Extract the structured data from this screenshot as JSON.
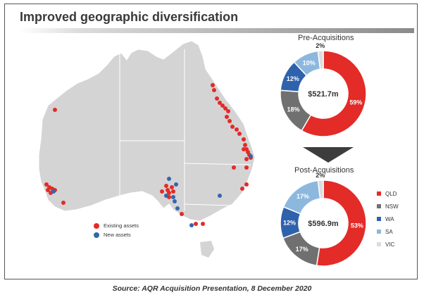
{
  "title": "Improved geographic diversification",
  "caption": "Source: AQR Acquisition Presentation, 8 December 2020",
  "map_legend": {
    "existing": "Existing assets",
    "new": "New assets"
  },
  "colors": {
    "QLD": "#e32b28",
    "NSW": "#707070",
    "WA": "#2f62ac",
    "SA": "#8db8de",
    "VIC": "#dcdcdc",
    "land": "#d4d4d4",
    "existing_dot": "#e32b28",
    "new_dot": "#3366b0"
  },
  "chart_data": [
    {
      "type": "pie",
      "title": "Pre-Acquisitions",
      "center_label": "$521.7m",
      "categories": [
        "QLD",
        "NSW",
        "WA",
        "SA",
        "VIC"
      ],
      "values": [
        59,
        18,
        12,
        10,
        2
      ],
      "labels": [
        "59%",
        "18%",
        "12%",
        "10%",
        "2%"
      ]
    },
    {
      "type": "pie",
      "title": "Post-Acquisitions",
      "center_label": "$596.9m",
      "categories": [
        "QLD",
        "NSW",
        "WA",
        "SA",
        "VIC"
      ],
      "values": [
        53,
        17,
        12,
        17,
        2
      ],
      "labels": [
        "53%",
        "17%",
        "12%",
        "17%",
        "2%"
      ],
      "legend": [
        "QLD",
        "NSW",
        "WA",
        "SA",
        "VIC"
      ]
    }
  ]
}
